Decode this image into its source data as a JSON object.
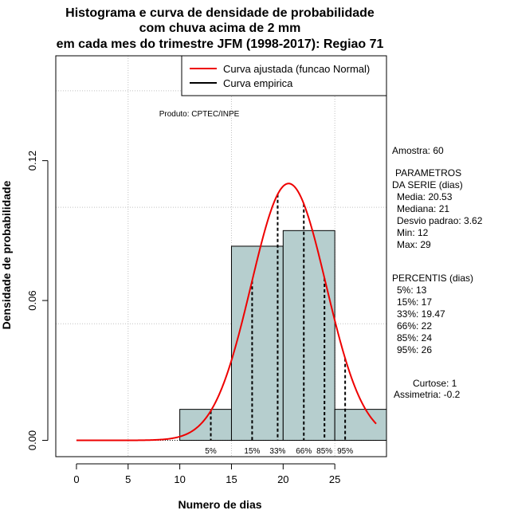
{
  "chart_data": {
    "type": "bar",
    "title_lines": [
      "Histograma e curva de densidade de probabilidade",
      "com chuva acima de 2 mm",
      "em cada mes do trimestre JFM (1998-2017): Regiao 71"
    ],
    "xlabel": "Numero de dias",
    "ylabel": "Densidade de probabilidade",
    "xlim": [
      -2,
      30
    ],
    "ylim": [
      -0.007,
      0.165
    ],
    "x_ticks": [
      0,
      5,
      10,
      15,
      20,
      25
    ],
    "y_ticks": [
      0.0,
      0.06,
      0.12
    ],
    "y_tick_labels": [
      "0.00",
      "0.06",
      "0.12"
    ],
    "x_grid": [
      5,
      15,
      25
    ],
    "y_grid": [
      0.05,
      0.1,
      0.15
    ],
    "bins": [
      {
        "from": 10,
        "to": 15,
        "density": 0.0133
      },
      {
        "from": 15,
        "to": 20,
        "density": 0.0833
      },
      {
        "from": 20,
        "to": 25,
        "density": 0.09
      },
      {
        "from": 25,
        "to": 30,
        "density": 0.0133
      }
    ],
    "normal_curve": {
      "mean": 20.53,
      "sd": 3.62,
      "x_from": 0,
      "x_to": 29
    },
    "percentiles": [
      {
        "label": "5%",
        "value": 13
      },
      {
        "label": "15%",
        "value": 17
      },
      {
        "label": "33%",
        "value": 19.47
      },
      {
        "label": "66%",
        "value": 22
      },
      {
        "label": "85%",
        "value": 24
      },
      {
        "label": "95%",
        "value": 26
      }
    ],
    "legend": {
      "placement": "top-right",
      "items": [
        {
          "label": "Curva ajustada (funcao Normal)",
          "color": "#ee0000"
        },
        {
          "label": "Curva empirica",
          "color": "#000000"
        }
      ]
    },
    "colors": {
      "bar_fill": "#b6cece",
      "curve": "#ee0000",
      "grid": "#c0c0c0"
    }
  },
  "annotations": {
    "product": "Produto: CPTEC/INPE",
    "sample": "Amostra: 60",
    "params_header": [
      "PARAMETROS",
      "DA SERIE (dias)"
    ],
    "params": [
      "Media: 20.53",
      "Mediana: 21",
      "Desvio padrao: 3.62",
      "Min: 12",
      "Max: 29"
    ],
    "percentis_header": "PERCENTIS (dias)",
    "percentis": [
      "5%: 13",
      "15%: 17",
      "33%: 19.47",
      "66%: 22",
      "85%: 24",
      "95%: 26"
    ],
    "kurtosis": "Curtose: 1",
    "skewness": "Assimetria: -0.2"
  }
}
